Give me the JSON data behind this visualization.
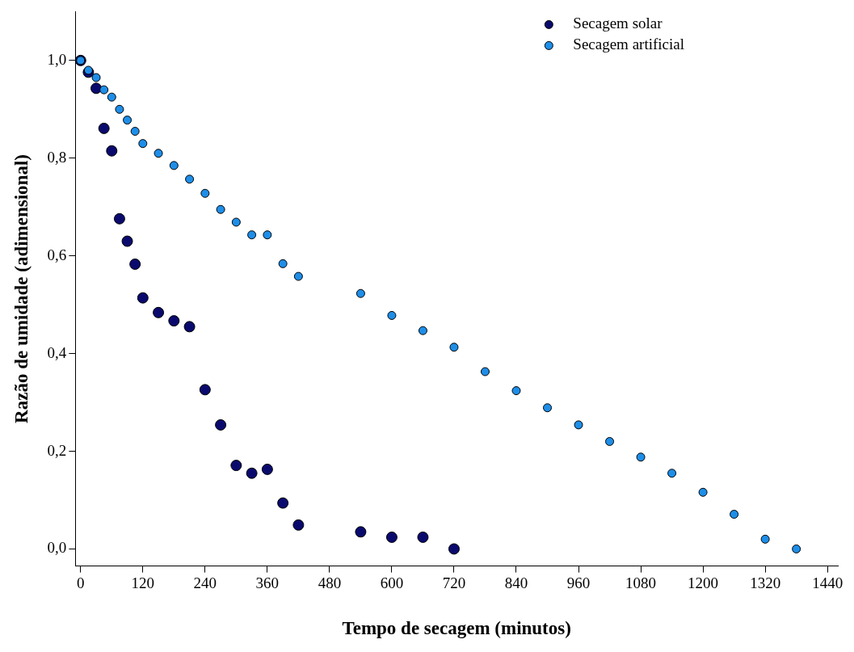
{
  "chart_data": {
    "type": "scatter",
    "xlabel": "Tempo de secagem (minutos)",
    "ylabel": "Razão de umidade (adimensional)",
    "xlim": [
      -10,
      1460
    ],
    "ylim": [
      -0.035,
      1.1
    ],
    "xticks": [
      0,
      120,
      240,
      360,
      480,
      600,
      720,
      840,
      960,
      1080,
      1200,
      1320,
      1440
    ],
    "yticks": [
      {
        "value": 0,
        "label": "0,0"
      },
      {
        "value": 0.2,
        "label": "0,2"
      },
      {
        "value": 0.4,
        "label": "0,4"
      },
      {
        "value": 0.6,
        "label": "0,6"
      },
      {
        "value": 0.8,
        "label": "0,8"
      },
      {
        "value": 1.0,
        "label": "1,0"
      }
    ],
    "grid": false,
    "legend": "top right",
    "marker": "circle",
    "series": [
      {
        "name": "Secagem solar",
        "color": "#0a0a6e",
        "x": [
          0,
          15,
          30,
          45,
          60,
          75,
          90,
          105,
          120,
          150,
          180,
          210,
          240,
          270,
          300,
          330,
          360,
          390,
          420,
          540,
          600,
          660,
          720
        ],
        "values": [
          1.0,
          0.976,
          0.943,
          0.861,
          0.815,
          0.676,
          0.63,
          0.583,
          0.514,
          0.484,
          0.467,
          0.455,
          0.326,
          0.254,
          0.171,
          0.155,
          0.163,
          0.094,
          0.049,
          0.035,
          0.024,
          0.024,
          0.0
        ]
      },
      {
        "name": "Secagem artificial",
        "color": "#1e8ee8",
        "x": [
          0,
          15,
          30,
          45,
          60,
          75,
          90,
          105,
          120,
          150,
          180,
          210,
          240,
          270,
          300,
          330,
          360,
          390,
          420,
          540,
          600,
          660,
          720,
          780,
          840,
          900,
          960,
          1020,
          1080,
          1140,
          1200,
          1260,
          1320,
          1380
        ],
        "values": [
          1.0,
          0.98,
          0.965,
          0.94,
          0.925,
          0.9,
          0.878,
          0.855,
          0.83,
          0.81,
          0.785,
          0.757,
          0.728,
          0.695,
          0.669,
          0.643,
          0.643,
          0.584,
          0.558,
          0.523,
          0.478,
          0.447,
          0.413,
          0.363,
          0.324,
          0.289,
          0.254,
          0.22,
          0.188,
          0.155,
          0.116,
          0.071,
          0.02,
          0.0
        ]
      }
    ]
  }
}
